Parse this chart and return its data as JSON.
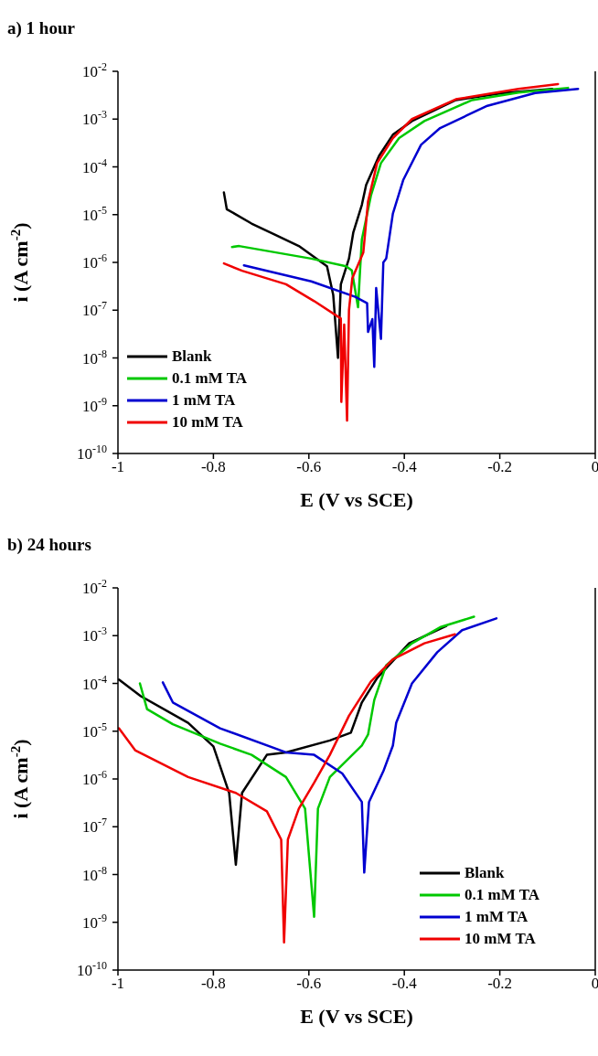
{
  "chart_data": [
    {
      "type": "line",
      "title": "a) 1 hour",
      "xlabel": "E (V vs SCE)",
      "ylabel": "i (A cm$^{-2}$)",
      "log": "y",
      "legend": "bottom left",
      "xlim": [
        -1,
        0
      ],
      "xticks": [
        -1,
        -0.8,
        -0.6,
        -0.4,
        -0.2,
        0
      ],
      "ylim": [
        1e-10,
        0.01
      ],
      "yticks": [
        {
          "value": 1e-10,
          "label": "10$^{-10}$"
        },
        {
          "value": 1e-09,
          "label": "10$^{-9}$"
        },
        {
          "value": 1e-08,
          "label": "10$^{-8}$"
        },
        {
          "value": 1e-07,
          "label": "10$^{-7}$"
        },
        {
          "value": 1e-06,
          "label": "10$^{-6}$"
        },
        {
          "value": 1e-05,
          "label": "10$^{-5}$"
        },
        {
          "value": 0.0001,
          "label": "10$^{-4}$"
        },
        {
          "value": 0.001,
          "label": "10$^{-3}$"
        },
        {
          "value": 0.01,
          "label": "10$^{-2}$"
        }
      ],
      "series": [
        {
          "name": "Blank",
          "color": "#000000",
          "x": [
            -0.778,
            -0.772,
            -0.72,
            -0.621,
            -0.562,
            -0.549,
            -0.539,
            -0.533,
            -0.516,
            -0.507,
            -0.489,
            -0.48,
            -0.453,
            -0.424,
            -0.384,
            -0.292,
            -0.193,
            -0.09
          ],
          "values": [
            2.9e-05,
            1.3e-05,
            6.5e-06,
            2.2e-06,
            8.3e-07,
            2.1e-07,
            1e-08,
            3.5e-07,
            1.2e-06,
            4.2e-06,
            1.6e-05,
            4.2e-05,
            0.00017,
            0.00047,
            0.00091,
            0.0025,
            0.0035,
            0.0043
          ]
        },
        {
          "name": "0.1 mM TA",
          "color": "#00c800",
          "x": [
            -0.761,
            -0.746,
            -0.595,
            -0.522,
            -0.51,
            -0.497,
            -0.493,
            -0.489,
            -0.47,
            -0.449,
            -0.411,
            -0.358,
            -0.258,
            -0.161,
            -0.057
          ],
          "values": [
            2.1e-06,
            2.2e-06,
            1.2e-06,
            8.3e-07,
            6.8e-07,
            1.15e-07,
            6.2e-07,
            3e-06,
            2.5e-05,
            0.00012,
            0.0004,
            0.00091,
            0.0025,
            0.0036,
            0.0045
          ]
        },
        {
          "name": "1 mM TA",
          "color": "#0000d0",
          "x": [
            -0.736,
            -0.595,
            -0.503,
            -0.478,
            -0.476,
            -0.467,
            -0.463,
            -0.459,
            -0.449,
            -0.444,
            -0.438,
            -0.424,
            -0.402,
            -0.365,
            -0.325,
            -0.226,
            -0.126,
            -0.036
          ],
          "values": [
            8.7e-07,
            4e-07,
            1.9e-07,
            1.4e-07,
            3.5e-08,
            6.5e-08,
            6.5e-09,
            2.9e-07,
            2.5e-08,
            1e-06,
            1.2e-06,
            1.05e-05,
            5.4e-05,
            0.00029,
            0.00065,
            0.0019,
            0.0035,
            0.0043
          ]
        },
        {
          "name": "10 mM TA",
          "color": "#f00000",
          "x": [
            -0.778,
            -0.74,
            -0.648,
            -0.589,
            -0.533,
            -0.532,
            -0.526,
            -0.52,
            -0.516,
            -0.509,
            -0.486,
            -0.476,
            -0.457,
            -0.424,
            -0.384,
            -0.292,
            -0.161,
            -0.078
          ],
          "values": [
            9.5e-07,
            6.7e-07,
            3.5e-07,
            1.55e-07,
            6.7e-08,
            1.2e-09,
            5e-08,
            4.9e-10,
            1e-07,
            4.7e-07,
            1.6e-06,
            1.9e-05,
            0.00012,
            0.0004,
            0.001,
            0.0026,
            0.0043,
            0.0054
          ]
        }
      ]
    },
    {
      "type": "line",
      "title": "b) 24 hours",
      "xlabel": "E (V vs SCE)",
      "ylabel": "i (A cm$^{-2}$)",
      "log": "y",
      "legend": "bottom right",
      "xlim": [
        -1,
        0
      ],
      "xticks": [
        -1,
        -0.8,
        -0.6,
        -0.4,
        -0.2,
        0
      ],
      "ylim": [
        1e-10,
        0.01
      ],
      "yticks": [
        {
          "value": 1e-10,
          "label": "10$^{-10}$"
        },
        {
          "value": 1e-09,
          "label": "10$^{-9}$"
        },
        {
          "value": 1e-08,
          "label": "10$^{-8}$"
        },
        {
          "value": 1e-07,
          "label": "10$^{-7}$"
        },
        {
          "value": 1e-06,
          "label": "10$^{-6}$"
        },
        {
          "value": 1e-05,
          "label": "10$^{-5}$"
        },
        {
          "value": 0.0001,
          "label": "10$^{-4}$"
        },
        {
          "value": 0.001,
          "label": "10$^{-3}$"
        },
        {
          "value": 0.01,
          "label": "10$^{-2}$"
        }
      ],
      "series": [
        {
          "name": "Blank",
          "color": "#000000",
          "x": [
            -0.998,
            -0.952,
            -0.853,
            -0.8,
            -0.767,
            -0.753,
            -0.74,
            -0.688,
            -0.648,
            -0.556,
            -0.512,
            -0.489,
            -0.457,
            -0.39,
            -0.312
          ],
          "values": [
            0.00012,
            5.4e-05,
            1.5e-05,
            4.8e-06,
            5.1e-07,
            1.6e-08,
            5.1e-07,
            3.2e-06,
            3.6e-06,
            6.4e-06,
            9.3e-06,
            4e-05,
            0.00013,
            0.00069,
            0.0016
          ]
        },
        {
          "name": "0.1 mM TA",
          "color": "#00c800",
          "x": [
            -0.954,
            -0.939,
            -0.885,
            -0.786,
            -0.72,
            -0.648,
            -0.608,
            -0.589,
            -0.581,
            -0.556,
            -0.489,
            -0.476,
            -0.463,
            -0.438,
            -0.384,
            -0.325,
            -0.254
          ],
          "values": [
            0.0001,
            2.9e-05,
            1.4e-05,
            5.5e-06,
            3.2e-06,
            1.1e-06,
            2.4e-07,
            1.3e-09,
            2.4e-07,
            1.1e-06,
            5e-06,
            8.5e-06,
            4.5e-05,
            0.00024,
            0.00069,
            0.0015,
            0.0025
          ]
        },
        {
          "name": "1 mM TA",
          "color": "#0000d0",
          "x": [
            -0.906,
            -0.885,
            -0.786,
            -0.648,
            -0.589,
            -0.53,
            -0.489,
            -0.484,
            -0.474,
            -0.444,
            -0.424,
            -0.417,
            -0.384,
            -0.331,
            -0.279,
            -0.207
          ],
          "values": [
            0.000105,
            4e-05,
            1.15e-05,
            3.6e-06,
            3.2e-06,
            1.3e-06,
            3.3e-07,
            1.1e-08,
            3.3e-07,
            1.45e-06,
            5e-06,
            1.5e-05,
            0.0001,
            0.00045,
            0.0013,
            0.0023
          ]
        },
        {
          "name": "10 mM TA",
          "color": "#f00000",
          "x": [
            -0.998,
            -0.964,
            -0.853,
            -0.753,
            -0.688,
            -0.658,
            -0.652,
            -0.644,
            -0.621,
            -0.589,
            -0.556,
            -0.516,
            -0.47,
            -0.424,
            -0.358,
            -0.294
          ],
          "values": [
            1.15e-05,
            4e-06,
            1.1e-06,
            5.1e-07,
            2.1e-07,
            5.4e-08,
            3.8e-10,
            5.4e-08,
            2.4e-07,
            8.3e-07,
            3.2e-06,
            2.1e-05,
            0.00011,
            0.00032,
            0.00069,
            0.00107
          ]
        }
      ]
    }
  ]
}
